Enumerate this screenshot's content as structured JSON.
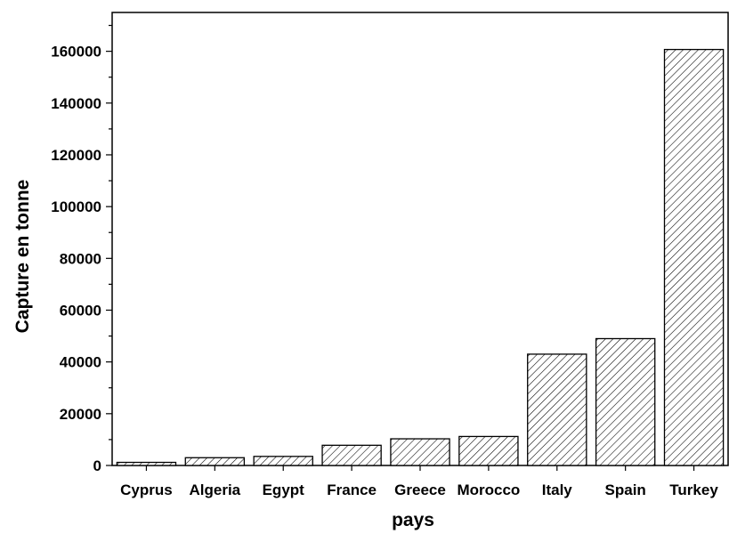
{
  "chart_data": {
    "type": "bar",
    "categories": [
      "Cyprus",
      "Algeria",
      "Egypt",
      "France",
      "Greece",
      "Morocco",
      "Italy",
      "Spain",
      "Turkey"
    ],
    "values": [
      1200,
      3000,
      3500,
      7800,
      10300,
      11200,
      43000,
      49000,
      160700
    ],
    "xlabel": "pays",
    "ylabel": "Capture en tonne",
    "ylim": [
      0,
      175000
    ],
    "yticks": [
      0,
      20000,
      40000,
      60000,
      80000,
      100000,
      120000,
      140000,
      160000
    ],
    "grid": false,
    "legend": "none",
    "bar_pattern": "diagonal-hatch",
    "bar_color": "#000000"
  }
}
